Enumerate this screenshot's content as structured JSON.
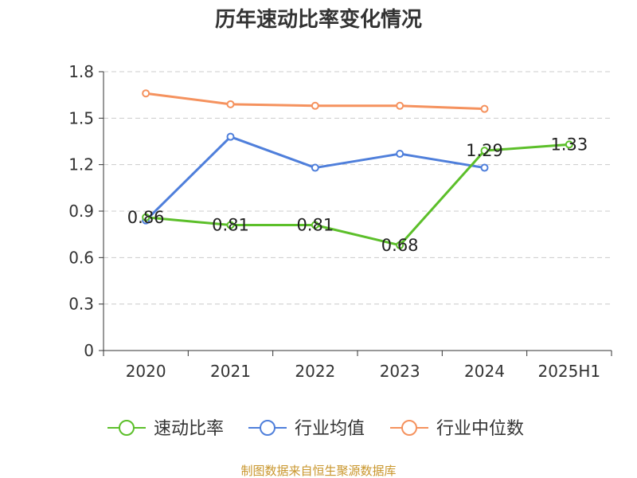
{
  "chart_data": {
    "type": "line",
    "title": "历年速动比率变化情况",
    "categories": [
      "2020",
      "2021",
      "2022",
      "2023",
      "2024",
      "2025H1"
    ],
    "ylim": [
      0,
      1.8
    ],
    "yticks": [
      "0",
      "0.3",
      "0.6",
      "0.9",
      "1.2",
      "1.5",
      "1.8"
    ],
    "ytick_values": [
      0,
      0.3,
      0.6,
      0.9,
      1.2,
      1.5,
      1.8
    ],
    "grid": true,
    "legend_position": "bottom",
    "series": [
      {
        "name": "速动比率",
        "color": "#5cbf2a",
        "values": [
          0.86,
          0.81,
          0.81,
          0.68,
          1.29,
          1.33
        ],
        "labels": [
          "0.86",
          "0.81",
          "0.81",
          "0.68",
          "1.29",
          "1.33"
        ]
      },
      {
        "name": "行业均值",
        "color": "#4f7fdb",
        "values": [
          0.84,
          1.38,
          1.18,
          1.27,
          1.18,
          null
        ]
      },
      {
        "name": "行业中位数",
        "color": "#f5925e",
        "values": [
          1.66,
          1.59,
          1.58,
          1.58,
          1.56,
          null
        ]
      }
    ]
  },
  "source": "制图数据来自恒生聚源数据库"
}
